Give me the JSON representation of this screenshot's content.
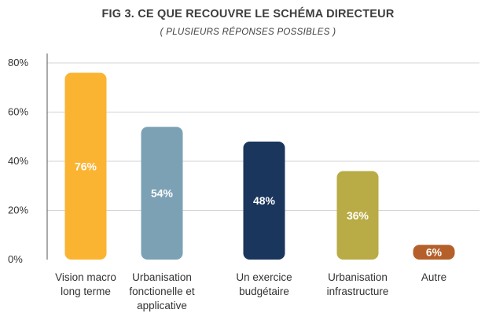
{
  "chart_data": {
    "type": "bar",
    "title": "FIG 3. CE QUE RECOUVRE LE SCHÉMA DIRECTEUR",
    "subtitle": "( PLUSIEURS RÉPONSES POSSIBLES )",
    "categories": [
      [
        "Vision macro",
        "long terme"
      ],
      [
        "Urbanisation",
        "fonctionelle et",
        "applicative"
      ],
      [
        "Un exercice",
        "budgétaire"
      ],
      [
        "Urbanisation",
        "infrastructure"
      ],
      [
        "Autre"
      ]
    ],
    "values": [
      76,
      54,
      48,
      36,
      6
    ],
    "value_labels": [
      "76%",
      "54%",
      "48%",
      "36%",
      "6%"
    ],
    "colors": [
      "#FBB432",
      "#7CA1B5",
      "#1B365D",
      "#B9AB45",
      "#B5602A"
    ],
    "yticks": [
      0,
      20,
      40,
      60,
      80
    ],
    "ytick_labels": [
      "0%",
      "20%",
      "40%",
      "60%",
      "80%"
    ],
    "ylim": [
      0,
      85
    ],
    "grid": true
  }
}
